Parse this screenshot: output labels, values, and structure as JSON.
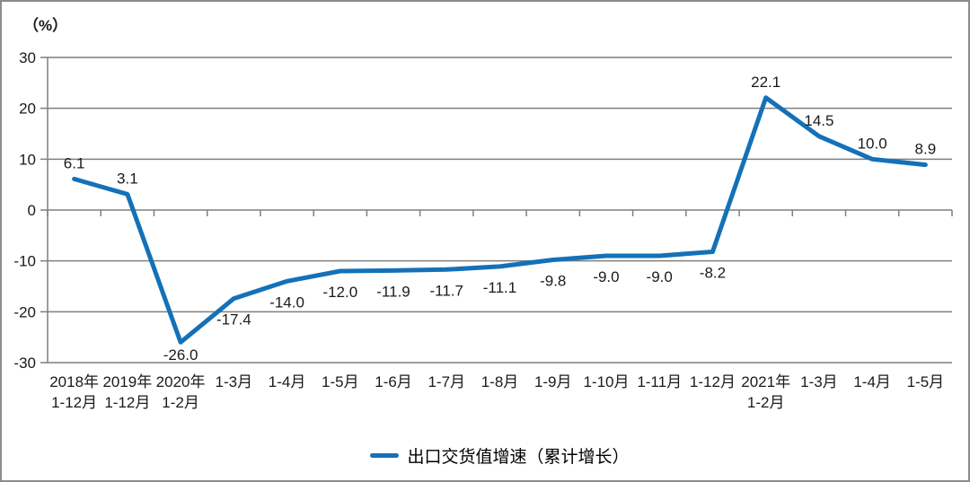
{
  "window": {
    "background": "#ffffff",
    "border_color": "#8c8c8c"
  },
  "chart_data": {
    "type": "line",
    "title": "",
    "xlabel": "",
    "ylabel": "（%）",
    "ylim": [
      -30,
      30
    ],
    "yticks": [
      30,
      20,
      10,
      0,
      -10,
      -20,
      -30
    ],
    "grid": true,
    "categories": [
      [
        "2018年",
        "1-12月"
      ],
      [
        "2019年",
        "1-12月"
      ],
      [
        "2020年",
        "1-2月"
      ],
      [
        "1-3月"
      ],
      [
        "1-4月"
      ],
      [
        "1-5月"
      ],
      [
        "1-6月"
      ],
      [
        "1-7月"
      ],
      [
        "1-8月"
      ],
      [
        "1-9月"
      ],
      [
        "1-10月"
      ],
      [
        "1-11月"
      ],
      [
        "1-12月"
      ],
      [
        "2021年",
        "1-2月"
      ],
      [
        "1-3月"
      ],
      [
        "1-4月"
      ],
      [
        "1-5月"
      ]
    ],
    "values": [
      6.1,
      3.1,
      -26.0,
      -17.4,
      -14.0,
      -12.0,
      -11.9,
      -11.7,
      -11.1,
      -9.8,
      -9.0,
      -9.0,
      -8.2,
      22.1,
      14.5,
      10.0,
      8.9
    ],
    "data_labels": [
      "6.1",
      "3.1",
      "-26.0",
      "-17.4",
      "-14.0",
      "-12.0",
      "-11.9",
      "-11.7",
      "-11.1",
      "-9.8",
      "-9.0",
      "-9.0",
      "-8.2",
      "22.1",
      "14.5",
      "10.0",
      "8.9"
    ],
    "legend": {
      "position": "bottom",
      "label": "出口交货值增速（累计增长）"
    },
    "colors": {
      "series_line": "#1471b8",
      "grid_line": "#7f7f7f",
      "axis_line": "#7f7f7f",
      "label_text": "#1a1a1a"
    }
  }
}
